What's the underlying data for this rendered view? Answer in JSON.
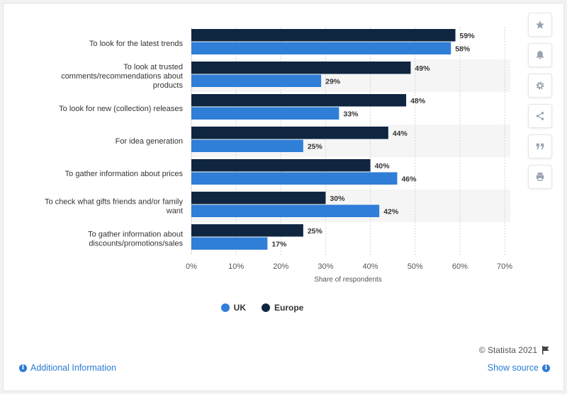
{
  "chart_data": {
    "type": "bar",
    "orientation": "horizontal",
    "categories": [
      [
        "To look for the latest trends"
      ],
      [
        "To look at trusted",
        "comments/recommendations about",
        "products"
      ],
      [
        "To look for new (collection) releases"
      ],
      [
        "For idea generation"
      ],
      [
        "To gather information about prices"
      ],
      [
        "To check what gifts friends and/or family",
        "want"
      ],
      [
        "To gather information about",
        "discounts/promotions/sales"
      ]
    ],
    "series": [
      {
        "name": "Europe",
        "color": "#0f2540",
        "values": [
          59,
          49,
          48,
          44,
          40,
          30,
          25
        ]
      },
      {
        "name": "UK",
        "color": "#2f7ed8",
        "values": [
          58,
          29,
          33,
          25,
          46,
          42,
          17
        ]
      }
    ],
    "xticks": [
      0,
      10,
      20,
      30,
      40,
      50,
      60,
      70
    ],
    "tick_suffix": "%",
    "value_suffix": "%",
    "xlim": [
      0,
      70
    ],
    "xlabel": "Share of respondents",
    "grid": "vertical dashed",
    "legend_position": "bottom"
  },
  "legend": [
    {
      "label": "UK",
      "color": "#2f7ed8"
    },
    {
      "label": "Europe",
      "color": "#0f2540"
    }
  ],
  "credit": "© Statista 2021",
  "footer": {
    "additional_info": "Additional Information",
    "show_source": "Show source"
  },
  "tools": [
    "star-icon",
    "bell-icon",
    "gear-icon",
    "share-icon",
    "quote-icon",
    "print-icon"
  ]
}
